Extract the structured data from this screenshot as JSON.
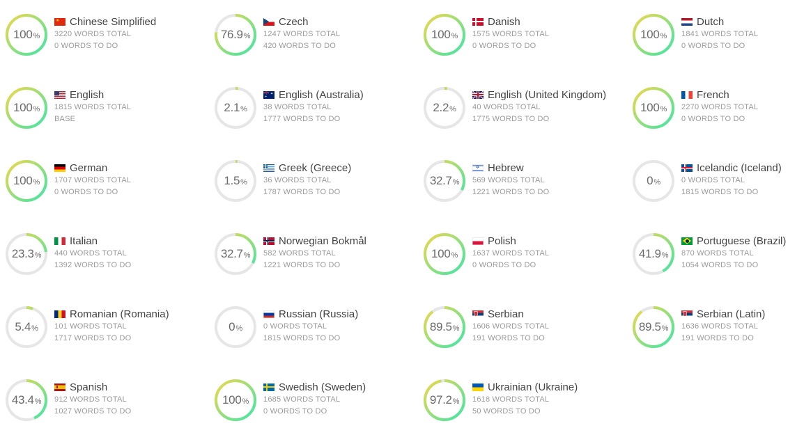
{
  "labels": {
    "percent_suffix": "%",
    "words_total_suffix": "WORDS TOTAL",
    "words_todo_suffix": "WORDS TO DO",
    "base_label": "BASE"
  },
  "colors": {
    "ring_track": "#e6e6e6",
    "ring_start": "#3ee6a6",
    "ring_end": "#f0d84a"
  },
  "languages": [
    {
      "name": "Chinese Simplified",
      "flag": "cn-flag",
      "percent": "100",
      "words_total": "3220 WORDS TOTAL",
      "words_todo": "0 WORDS TO DO"
    },
    {
      "name": "Czech",
      "flag": "cz-flag",
      "percent": "76.9",
      "words_total": "1247 WORDS TOTAL",
      "words_todo": "420 WORDS TO DO"
    },
    {
      "name": "Danish",
      "flag": "dk-flag",
      "percent": "100",
      "words_total": "1575 WORDS TOTAL",
      "words_todo": "0 WORDS TO DO"
    },
    {
      "name": "Dutch",
      "flag": "nl-flag",
      "percent": "100",
      "words_total": "1841 WORDS TOTAL",
      "words_todo": "0 WORDS TO DO"
    },
    {
      "name": "English",
      "flag": "us-flag",
      "percent": "100",
      "words_total": "1815 WORDS TOTAL",
      "words_todo": "BASE"
    },
    {
      "name": "English (Australia)",
      "flag": "au-flag",
      "percent": "2.1",
      "words_total": "38 WORDS TOTAL",
      "words_todo": "1777 WORDS TO DO"
    },
    {
      "name": "English (United Kingdom)",
      "flag": "gb-flag",
      "percent": "2.2",
      "words_total": "40 WORDS TOTAL",
      "words_todo": "1775 WORDS TO DO"
    },
    {
      "name": "French",
      "flag": "fr-flag",
      "percent": "100",
      "words_total": "2270 WORDS TOTAL",
      "words_todo": "0 WORDS TO DO"
    },
    {
      "name": "German",
      "flag": "de-flag",
      "percent": "100",
      "words_total": "1707 WORDS TOTAL",
      "words_todo": "0 WORDS TO DO"
    },
    {
      "name": "Greek (Greece)",
      "flag": "gr-flag",
      "percent": "1.5",
      "words_total": "36 WORDS TOTAL",
      "words_todo": "1787 WORDS TO DO"
    },
    {
      "name": "Hebrew",
      "flag": "il-flag",
      "percent": "32.7",
      "words_total": "569 WORDS TOTAL",
      "words_todo": "1221 WORDS TO DO"
    },
    {
      "name": "Icelandic (Iceland)",
      "flag": "is-flag",
      "percent": "0",
      "words_total": "0 WORDS TOTAL",
      "words_todo": "1815 WORDS TO DO"
    },
    {
      "name": "Italian",
      "flag": "it-flag",
      "percent": "23.3",
      "words_total": "440 WORDS TOTAL",
      "words_todo": "1392 WORDS TO DO"
    },
    {
      "name": "Norwegian Bokmål",
      "flag": "no-flag",
      "percent": "32.7",
      "words_total": "582 WORDS TOTAL",
      "words_todo": "1221 WORDS TO DO"
    },
    {
      "name": "Polish",
      "flag": "pl-flag",
      "percent": "100",
      "words_total": "1637 WORDS TOTAL",
      "words_todo": "0 WORDS TO DO"
    },
    {
      "name": "Portuguese (Brazil)",
      "flag": "br-flag",
      "percent": "41.9",
      "words_total": "870 WORDS TOTAL",
      "words_todo": "1054 WORDS TO DO"
    },
    {
      "name": "Romanian (Romania)",
      "flag": "ro-flag",
      "percent": "5.4",
      "words_total": "101 WORDS TOTAL",
      "words_todo": "1717 WORDS TO DO"
    },
    {
      "name": "Russian (Russia)",
      "flag": "ru-flag",
      "percent": "0",
      "words_total": "0 WORDS TOTAL",
      "words_todo": "1815 WORDS TO DO"
    },
    {
      "name": "Serbian",
      "flag": "rs-flag",
      "percent": "89.5",
      "words_total": "1606 WORDS TOTAL",
      "words_todo": "191 WORDS TO DO"
    },
    {
      "name": "Serbian (Latin)",
      "flag": "rs-flag",
      "percent": "89.5",
      "words_total": "1636 WORDS TOTAL",
      "words_todo": "191 WORDS TO DO"
    },
    {
      "name": "Spanish",
      "flag": "es-flag",
      "percent": "43.4",
      "words_total": "912 WORDS TOTAL",
      "words_todo": "1027 WORDS TO DO"
    },
    {
      "name": "Swedish (Sweden)",
      "flag": "se-flag",
      "percent": "100",
      "words_total": "1685 WORDS TOTAL",
      "words_todo": "0 WORDS TO DO"
    },
    {
      "name": "Ukrainian (Ukraine)",
      "flag": "ua-flag",
      "percent": "97.2",
      "words_total": "1618 WORDS TOTAL",
      "words_todo": "50 WORDS TO DO"
    }
  ]
}
